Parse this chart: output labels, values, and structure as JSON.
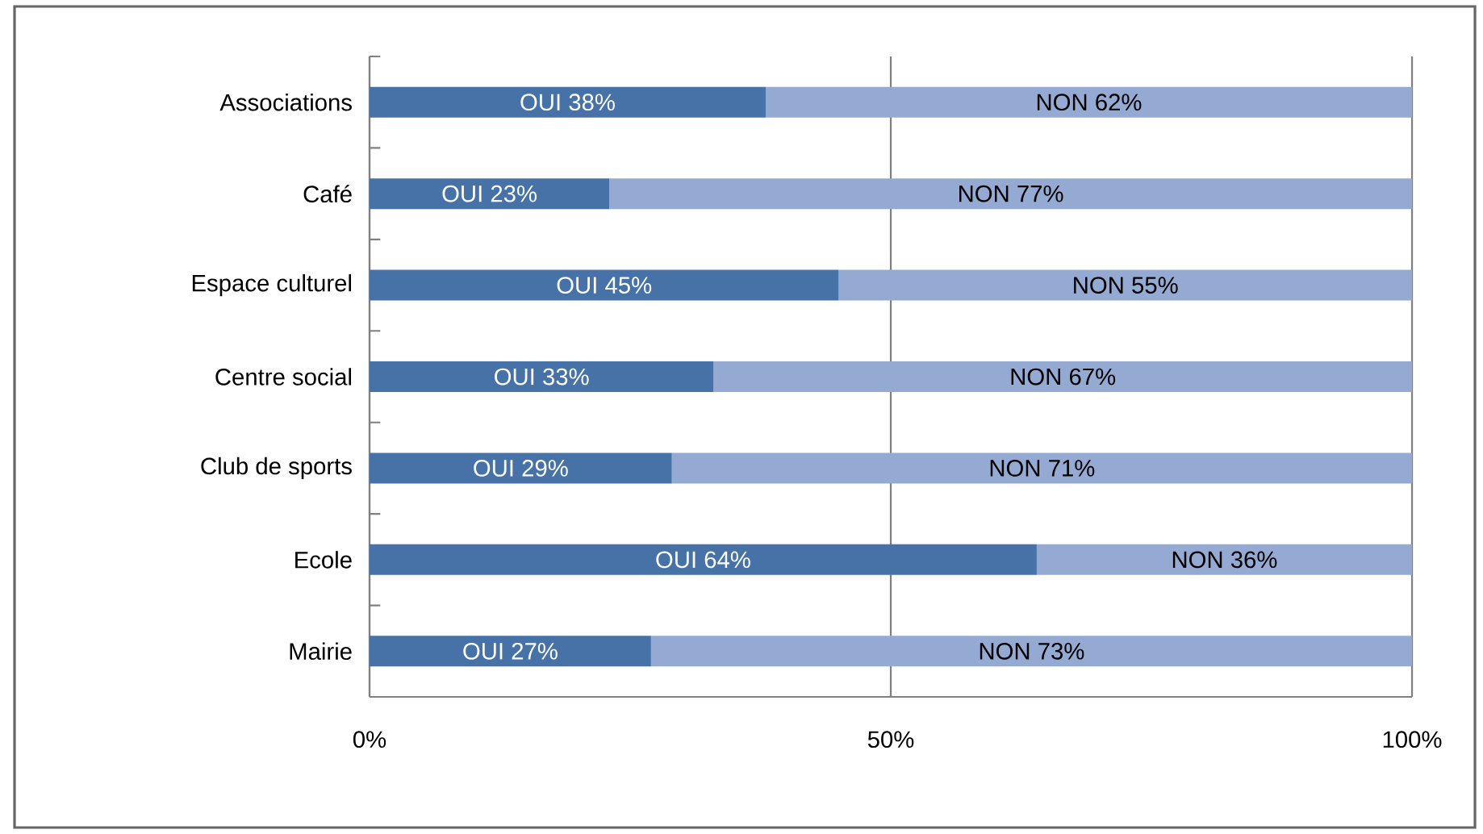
{
  "chart_data": {
    "type": "bar",
    "orientation": "horizontal",
    "stacked": true,
    "categories": [
      "Associations",
      "Café",
      "Espace culturel",
      "Centre social",
      "Club de sports",
      "Ecole",
      "Mairie"
    ],
    "series": [
      {
        "color": "#4672a8",
        "values": [
          38,
          23,
          45,
          33,
          29,
          64,
          27
        ],
        "value_labels": [
          "OUI 38%",
          "OUI 23%",
          "OUI 45%",
          "OUI 33%",
          "OUI 29%",
          "OUI 64%",
          "OUI 27%"
        ]
      },
      {
        "color": "#95aad3",
        "values": [
          62,
          77,
          55,
          67,
          71,
          36,
          73
        ],
        "value_labels": [
          "NON 62%",
          "NON 77%",
          "NON 55%",
          "NON 67%",
          "NON 71%",
          "NON 36%",
          "NON 73%"
        ]
      }
    ],
    "xlim": [
      0,
      100
    ],
    "xticks": [
      {
        "value": 0,
        "label": "0%"
      },
      {
        "value": 50,
        "label": "50%"
      },
      {
        "value": 100,
        "label": "100%"
      }
    ],
    "grid": "x"
  }
}
